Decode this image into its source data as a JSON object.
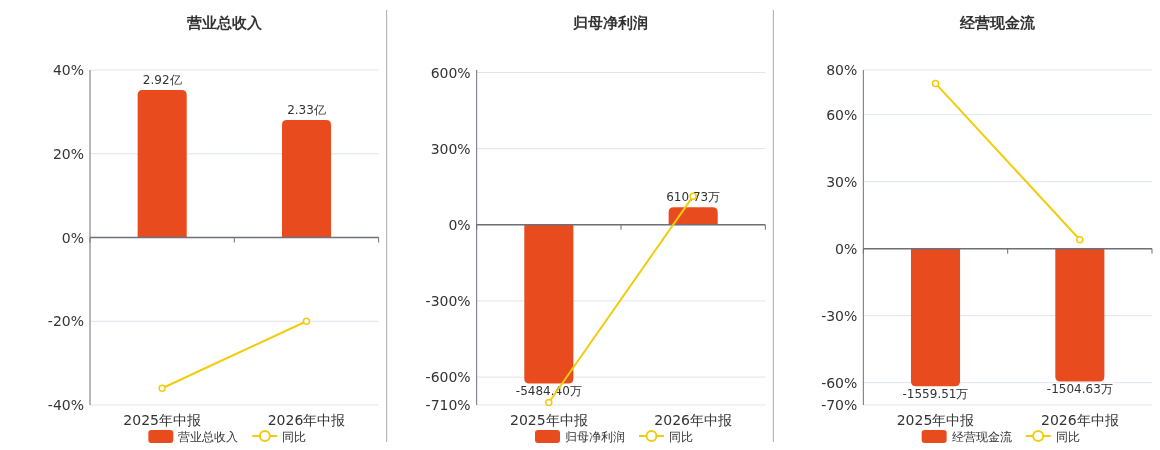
{
  "chart_data": [
    {
      "type": "bar",
      "title": "营业总收入",
      "categories": [
        "2025年中报",
        "2026年中报"
      ],
      "ylim": [
        -40,
        40
      ],
      "yticks": [
        {
          "value": -40,
          "label": "-40%"
        },
        {
          "value": -20,
          "label": "-20%"
        },
        {
          "value": 0,
          "label": "0%"
        },
        {
          "value": 20,
          "label": "20%"
        },
        {
          "value": 40,
          "label": "40%"
        }
      ],
      "grid": "y",
      "legend": "bottom",
      "marker": "circle",
      "series": [
        {
          "name": "营业总收入",
          "axis": "y2",
          "color": "#e84c1e",
          "values": [
            2.92,
            2.33
          ],
          "value_labels": [
            "2.92亿",
            "2.33亿"
          ]
        },
        {
          "name": "同比",
          "type": "line",
          "color": "#f2cc0c",
          "values": [
            -36,
            -20
          ]
        }
      ]
    },
    {
      "type": "bar",
      "title": "归母净利润",
      "categories": [
        "2025年中报",
        "2026年中报"
      ],
      "ylim": [
        -710,
        610
      ],
      "yticks": [
        {
          "value": -710,
          "label": "-710%"
        },
        {
          "value": -600,
          "label": "-600%"
        },
        {
          "value": -300,
          "label": "-300%"
        },
        {
          "value": 0,
          "label": "0%"
        },
        {
          "value": 300,
          "label": "300%"
        },
        {
          "value": 600,
          "label": "600%"
        }
      ],
      "grid": "y",
      "legend": "bottom",
      "marker": "circle",
      "series": [
        {
          "name": "归母净利润",
          "axis": "y2",
          "color": "#e84c1e",
          "values": [
            -5484.4,
            610.73
          ],
          "value_labels": [
            "-5484.40万",
            "610.73万"
          ]
        },
        {
          "name": "同比",
          "type": "line",
          "color": "#f2cc0c",
          "values": [
            -700,
            113
          ]
        }
      ]
    },
    {
      "type": "bar",
      "title": "经营现金流",
      "categories": [
        "2025年中报",
        "2026年中报"
      ],
      "ylim": [
        -70,
        80
      ],
      "yticks": [
        {
          "value": -70,
          "label": "-70%"
        },
        {
          "value": -60,
          "label": "-60%"
        },
        {
          "value": -30,
          "label": "-30%"
        },
        {
          "value": 0,
          "label": "0%"
        },
        {
          "value": 30,
          "label": "30%"
        },
        {
          "value": 60,
          "label": "60%"
        },
        {
          "value": 80,
          "label": "80%"
        }
      ],
      "grid": "y",
      "legend": "bottom",
      "marker": "circle",
      "series": [
        {
          "name": "经营现金流",
          "axis": "y2",
          "color": "#e84c1e",
          "values": [
            -1559.51,
            -1504.63
          ],
          "value_labels": [
            "-1559.51万",
            "-1504.63万"
          ]
        },
        {
          "name": "同比",
          "type": "line",
          "color": "#f2cc0c",
          "values": [
            74,
            4
          ]
        }
      ]
    }
  ]
}
